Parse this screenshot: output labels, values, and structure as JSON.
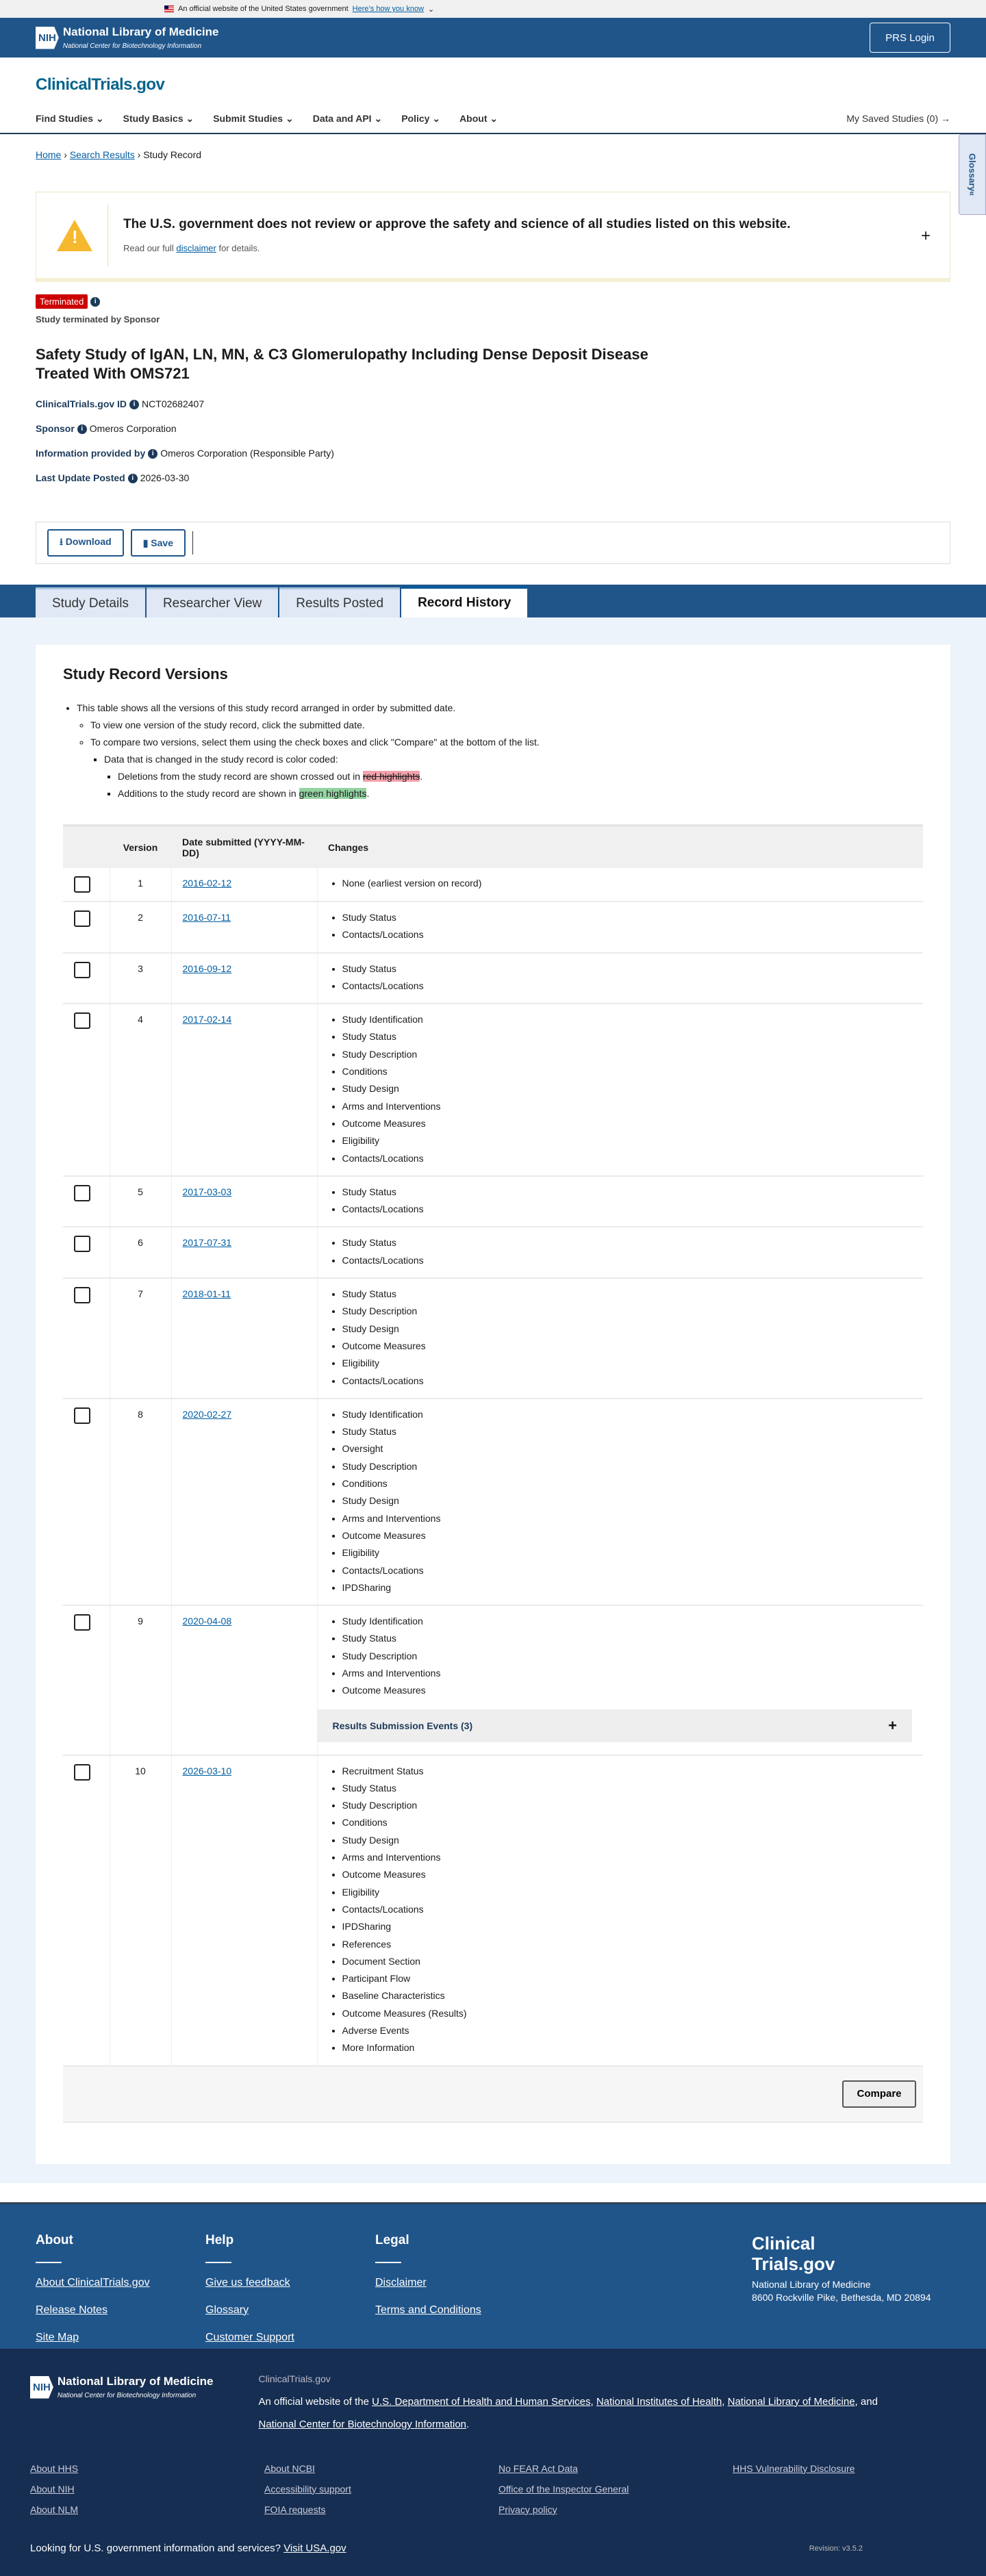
{
  "gov_banner": {
    "text": "An official website of the United States government",
    "link": "Here’s how you know"
  },
  "header": {
    "org": "National Library of Medicine",
    "org_sub": "National Center for Biotechnology Information",
    "nih": "NIH",
    "prs_login": "PRS Login",
    "site": "ClinicalTrials.gov"
  },
  "nav": {
    "items": [
      "Find Studies",
      "Study Basics",
      "Submit Studies",
      "Data and API",
      "Policy",
      "About"
    ],
    "saved": "My Saved Studies (0)"
  },
  "breadcrumb": [
    "Home",
    "Search Results",
    "Study Record"
  ],
  "glossary": "Glossary",
  "disclaimer": {
    "title": "The U.S. government does not review or approve the safety and science of all studies listed on this website.",
    "pre": "Read our full",
    "link": "disclaimer",
    "post": "for details."
  },
  "study": {
    "status": "Terminated",
    "status_note": "Study terminated by Sponsor",
    "title": "Safety Study of IgAN, LN, MN, & C3 Glomerulopathy Including Dense Deposit Disease Treated With OMS721",
    "fields": [
      {
        "label": "ClinicalTrials.gov ID",
        "value": "NCT02682407"
      },
      {
        "label": "Sponsor",
        "value": "Omeros Corporation"
      },
      {
        "label": "Information provided by",
        "value": "Omeros Corporation (Responsible Party)"
      },
      {
        "label": "Last Update Posted",
        "value": "2026-03-30"
      }
    ]
  },
  "actions": {
    "download": "Download",
    "save": "Save"
  },
  "tabs": [
    "Study Details",
    "Researcher View",
    "Results Posted",
    "Record History"
  ],
  "versions": {
    "heading": "Study Record Versions",
    "notes": {
      "n1": "This table shows all the versions of this study record arranged in order by submitted date.",
      "n2": "To view one version of the study record, click the submitted date.",
      "n3": "To compare two versions, select them using the check boxes and click \"Compare\" at the bottom of the list.",
      "n4": "Data that is changed in the study record is color coded:",
      "n5": "Deletions from the study record are shown crossed out in",
      "n5h": "red highlights",
      "n6": "Additions to the study record are shown in",
      "n6h": "green highlights"
    },
    "columns": [
      "",
      "Version",
      "Date submitted (YYYY-MM-DD)",
      "Changes"
    ],
    "rows": [
      {
        "version": "1",
        "date": "2016-02-12",
        "changes": [
          "None (earliest version on record)"
        ]
      },
      {
        "version": "2",
        "date": "2016-07-11",
        "changes": [
          "Study Status",
          "Contacts/Locations"
        ]
      },
      {
        "version": "3",
        "date": "2016-09-12",
        "changes": [
          "Study Status",
          "Contacts/Locations"
        ]
      },
      {
        "version": "4",
        "date": "2017-02-14",
        "changes": [
          "Study Identification",
          "Study Status",
          "Study Description",
          "Conditions",
          "Study Design",
          "Arms and Interventions",
          "Outcome Measures",
          "Eligibility",
          "Contacts/Locations"
        ]
      },
      {
        "version": "5",
        "date": "2017-03-03",
        "changes": [
          "Study Status",
          "Contacts/Locations"
        ]
      },
      {
        "version": "6",
        "date": "2017-07-31",
        "changes": [
          "Study Status",
          "Contacts/Locations"
        ]
      },
      {
        "version": "7",
        "date": "2018-01-11",
        "changes": [
          "Study Status",
          "Study Description",
          "Study Design",
          "Outcome Measures",
          "Eligibility",
          "Contacts/Locations"
        ]
      },
      {
        "version": "8",
        "date": "2020-02-27",
        "changes": [
          "Study Identification",
          "Study Status",
          "Oversight",
          "Study Description",
          "Conditions",
          "Study Design",
          "Arms and Interventions",
          "Outcome Measures",
          "Eligibility",
          "Contacts/Locations",
          "IPDSharing"
        ]
      },
      {
        "version": "9",
        "date": "2020-04-08",
        "changes": [
          "Study Identification",
          "Study Status",
          "Study Description",
          "Arms and Interventions",
          "Outcome Measures"
        ],
        "events": "Results Submission Events (3)"
      },
      {
        "version": "10",
        "date": "2026-03-10",
        "changes": [
          "Recruitment Status",
          "Study Status",
          "Study Description",
          "Conditions",
          "Study Design",
          "Arms and Interventions",
          "Outcome Measures",
          "Eligibility",
          "Contacts/Locations",
          "IPDSharing",
          "References",
          "Document Section",
          "Participant Flow",
          "Baseline Characteristics",
          "Outcome Measures (Results)",
          "Adverse Events",
          "More Information"
        ]
      }
    ],
    "compare": "Compare"
  },
  "footer": {
    "cols": [
      {
        "title": "About",
        "links": [
          "About ClinicalTrials.gov",
          "Release Notes",
          "Site Map"
        ]
      },
      {
        "title": "Help",
        "links": [
          "Give us feedback",
          "Glossary",
          "Customer Support"
        ]
      },
      {
        "title": "Legal",
        "links": [
          "Disclaimer",
          "Terms and Conditions"
        ]
      }
    ],
    "brand1": "Clinical",
    "brand2": "Trials.gov",
    "addr1": "National Library of Medicine",
    "addr2": "8600 Rockville Pike, Bethesda, MD 20894",
    "site": "ClinicalTrials.gov",
    "official_pre": "An official website of the",
    "hhs": "U.S. Department of Health and Human Services",
    "nihl": "National Institutes of Health",
    "nlml": "National Library of Medicine",
    "and": "and",
    "ncbi": "National Center for Biotechnology Information",
    "grid": [
      "About HHS",
      "About NCBI",
      "No FEAR Act Data",
      "HHS Vulnerability Disclosure",
      "About NIH",
      "Accessibility support",
      "Office of the Inspector General",
      "",
      "About NLM",
      "FOIA requests",
      "Privacy policy",
      ""
    ],
    "usa_q": "Looking for U.S. government information and services?",
    "usa_link": "Visit USA.gov",
    "revision": "Revision: v3.5.2"
  },
  "colors": {
    "brand": "#20558a",
    "navy": "#162e51",
    "terminated": "#cc0000",
    "link": "#005ea2"
  }
}
